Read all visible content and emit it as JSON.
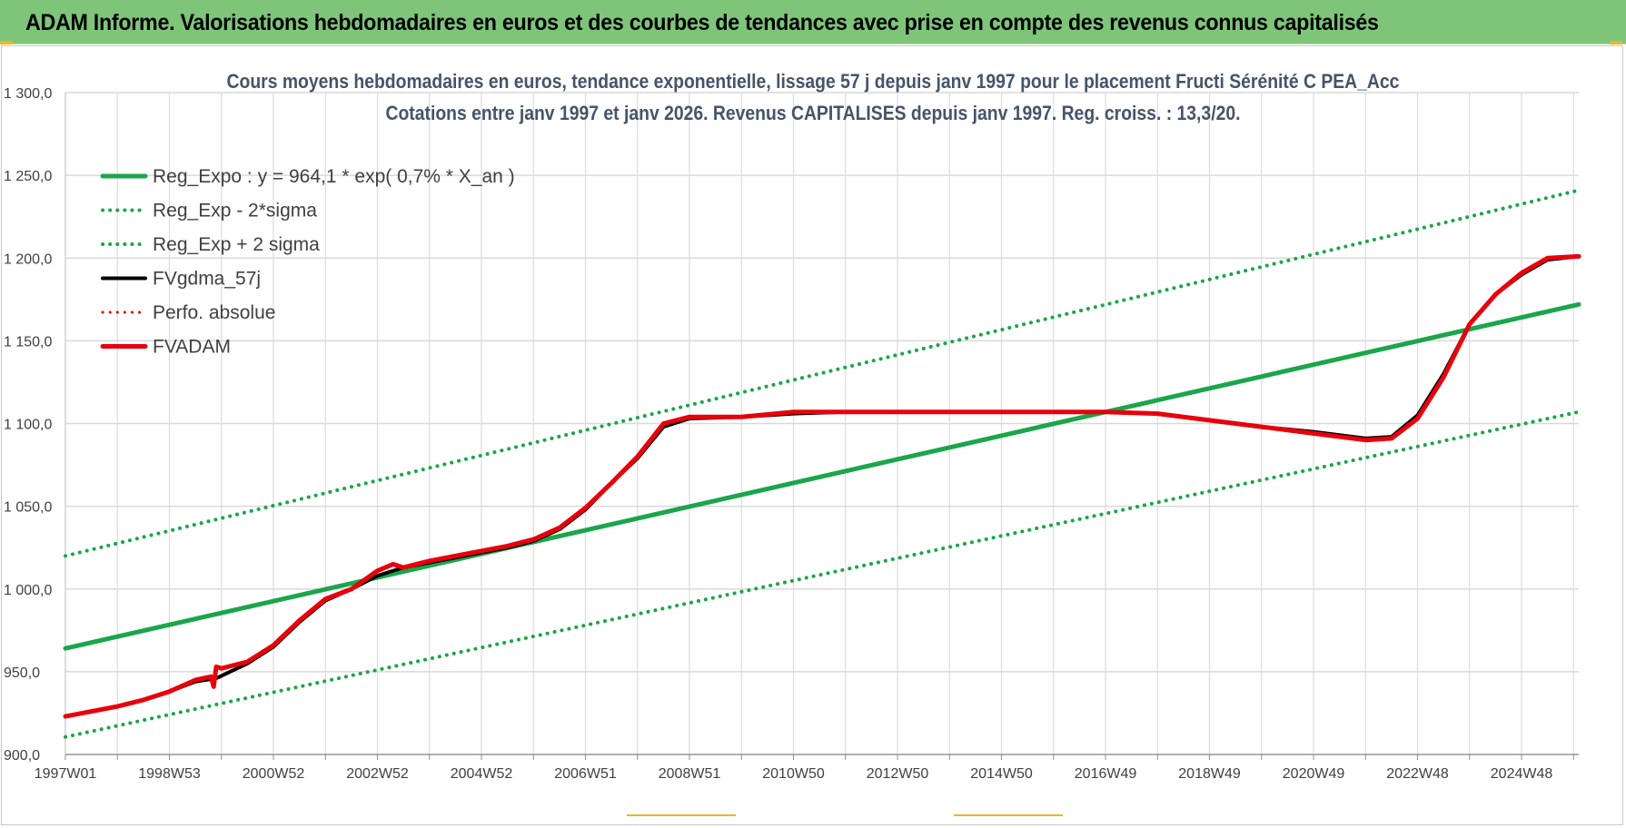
{
  "header": {
    "title": "ADAM Informe. Valorisations hebdomadaires en euros et des courbes de tendances avec prise en compte des revenus connus capitalisés"
  },
  "chart_data": {
    "type": "line",
    "title": "Cours moyens hebdomadaires en euros, tendance exponentielle, lissage 57 j depuis janv 1997 pour le placement Fructi Sérénité C PEA_Acc",
    "subtitle": "Cotations entre janv 1997 et janv 2026. Revenus CAPITALISES depuis janv 1997. Reg. croiss. : 13,3/20.",
    "xlabel": "",
    "ylabel": "",
    "x_unit": "year",
    "xlim": [
      1997.0,
      2026.1
    ],
    "ylim": [
      900,
      1300
    ],
    "y_ticks": [
      900,
      950,
      1000,
      1050,
      1100,
      1150,
      1200,
      1250,
      1300
    ],
    "y_tick_labels": [
      "900,0",
      "950,0",
      "1 000,0",
      "1 050,0",
      "1 100,0",
      "1 150,0",
      "1 200,0",
      "1 250,0",
      "1 300,0"
    ],
    "x_ticks": [
      {
        "x": 1997.0,
        "label": "1997W01"
      },
      {
        "x": 1998.0,
        "label": ""
      },
      {
        "x": 1999.0,
        "label": "1998W53"
      },
      {
        "x": 2000.0,
        "label": ""
      },
      {
        "x": 2001.0,
        "label": "2000W52"
      },
      {
        "x": 2002.0,
        "label": ""
      },
      {
        "x": 2003.0,
        "label": "2002W52"
      },
      {
        "x": 2004.0,
        "label": ""
      },
      {
        "x": 2005.0,
        "label": "2004W52"
      },
      {
        "x": 2006.0,
        "label": ""
      },
      {
        "x": 2007.0,
        "label": "2006W51"
      },
      {
        "x": 2008.0,
        "label": ""
      },
      {
        "x": 2009.0,
        "label": "2008W51"
      },
      {
        "x": 2010.0,
        "label": ""
      },
      {
        "x": 2011.0,
        "label": "2010W50"
      },
      {
        "x": 2012.0,
        "label": ""
      },
      {
        "x": 2013.0,
        "label": "2012W50"
      },
      {
        "x": 2014.0,
        "label": ""
      },
      {
        "x": 2015.0,
        "label": "2014W50"
      },
      {
        "x": 2016.0,
        "label": ""
      },
      {
        "x": 2017.0,
        "label": "2016W49"
      },
      {
        "x": 2018.0,
        "label": ""
      },
      {
        "x": 2019.0,
        "label": "2018W49"
      },
      {
        "x": 2020.0,
        "label": ""
      },
      {
        "x": 2021.0,
        "label": "2020W49"
      },
      {
        "x": 2022.0,
        "label": ""
      },
      {
        "x": 2023.0,
        "label": "2022W48"
      },
      {
        "x": 2024.0,
        "label": ""
      },
      {
        "x": 2025.0,
        "label": "2024W48"
      },
      {
        "x": 2026.0,
        "label": ""
      }
    ],
    "grid": true,
    "legend_position": "top-left",
    "series": [
      {
        "name": "Reg_Expo : y = 964,1 * exp( 0,7% *  X_an )",
        "color": "#1aa64a",
        "style": "solid",
        "width": 5,
        "x": [
          1997.0,
          2026.1
        ],
        "y": [
          964.1,
          1172.0
        ]
      },
      {
        "name": "Reg_Exp - 2*sigma",
        "color": "#1aa64a",
        "style": "dotted",
        "width": 4,
        "x": [
          1997.0,
          2026.1
        ],
        "y": [
          910.6,
          1107.0
        ]
      },
      {
        "name": "Reg_Exp + 2 sigma",
        "color": "#1aa64a",
        "style": "dotted",
        "width": 4,
        "x": [
          1997.0,
          2026.1
        ],
        "y": [
          1020.0,
          1241.0
        ]
      },
      {
        "name": "FVgdma_57j",
        "color": "#000000",
        "style": "solid",
        "width": 4,
        "x": [
          1997.0,
          1997.5,
          1998.0,
          1998.5,
          1999.0,
          1999.5,
          1999.9,
          2000.5,
          2001.0,
          2001.5,
          2002.0,
          2002.5,
          2003.0,
          2003.5,
          2004.0,
          2004.5,
          2005.0,
          2005.5,
          2006.0,
          2006.5,
          2007.0,
          2007.5,
          2008.0,
          2008.5,
          2009.0,
          2010.0,
          2011.0,
          2012.0,
          2013.0,
          2014.0,
          2015.0,
          2016.0,
          2017.0,
          2018.0,
          2019.0,
          2020.0,
          2021.0,
          2022.0,
          2022.5,
          2023.0,
          2023.5,
          2024.0,
          2024.5,
          2025.0,
          2025.5,
          2026.1
        ],
        "y": [
          923,
          926,
          929,
          933,
          938,
          944,
          946,
          955,
          965,
          980,
          993,
          1000,
          1008,
          1013,
          1016,
          1019,
          1022,
          1025,
          1029,
          1036,
          1048,
          1064,
          1079,
          1098,
          1103,
          1104,
          1106,
          1107,
          1107,
          1107,
          1107,
          1107,
          1107,
          1106,
          1102,
          1098,
          1095,
          1091,
          1092,
          1105,
          1130,
          1160,
          1178,
          1190,
          1199,
          1201
        ]
      },
      {
        "name": "Perfo. absolue",
        "color": "#e00000",
        "style": "dotted",
        "width": 3,
        "x": [],
        "y": []
      },
      {
        "name": "FVADAM",
        "color": "#e8000b",
        "style": "solid",
        "width": 5,
        "x": [
          1997.0,
          1997.5,
          1998.0,
          1998.5,
          1999.0,
          1999.5,
          1999.8,
          1999.85,
          1999.9,
          2000.0,
          2000.5,
          2001.0,
          2001.5,
          2002.0,
          2002.5,
          2003.0,
          2003.3,
          2003.5,
          2004.0,
          2004.5,
          2005.0,
          2005.5,
          2006.0,
          2006.5,
          2007.0,
          2007.5,
          2008.0,
          2008.5,
          2009.0,
          2010.0,
          2011.0,
          2012.0,
          2013.0,
          2014.0,
          2015.0,
          2016.0,
          2017.0,
          2018.0,
          2019.0,
          2020.0,
          2021.0,
          2022.0,
          2022.5,
          2023.0,
          2023.5,
          2024.0,
          2024.5,
          2025.0,
          2025.5,
          2026.1
        ],
        "y": [
          923,
          926,
          929,
          933,
          938,
          945,
          947,
          941,
          953,
          952,
          956,
          966,
          981,
          994,
          1000,
          1011,
          1015,
          1013,
          1017,
          1020,
          1023,
          1026,
          1030,
          1037,
          1049,
          1064,
          1080,
          1100,
          1104,
          1104,
          1107,
          1107,
          1107,
          1107,
          1107,
          1107,
          1107,
          1106,
          1102,
          1098,
          1094,
          1090,
          1091,
          1103,
          1128,
          1160,
          1178,
          1191,
          1200,
          1201
        ]
      }
    ]
  }
}
